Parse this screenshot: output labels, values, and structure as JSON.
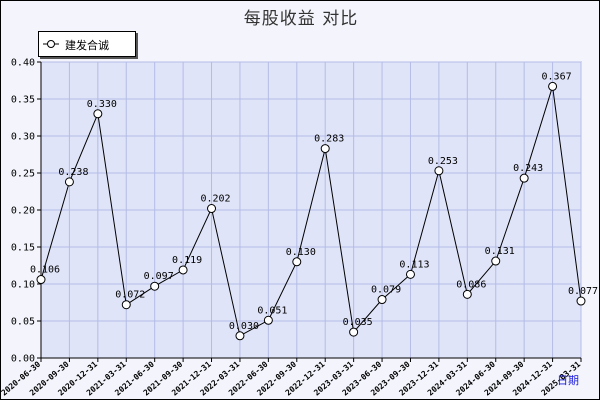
{
  "chart_data": {
    "type": "line",
    "title": "每股收益 对比",
    "xlabel": "",
    "ylabel": "",
    "x_axis_corner_label": "日期",
    "ylim": [
      0,
      0.4
    ],
    "yticks": [
      "0.00",
      "0.05",
      "0.10",
      "0.15",
      "0.20",
      "0.25",
      "0.30",
      "0.35",
      "0.40"
    ],
    "grid": true,
    "legend_position": "top-left",
    "categories": [
      "2020-06-30",
      "2020-09-30",
      "2020-12-31",
      "2021-03-31",
      "2021-06-30",
      "2021-09-30",
      "2021-12-31",
      "2022-03-31",
      "2022-06-30",
      "2022-09-30",
      "2022-12-31",
      "2023-03-31",
      "2023-06-30",
      "2023-09-30",
      "2023-12-31",
      "2024-03-31",
      "2024-06-30",
      "2024-09-30",
      "2024-12-31",
      "2025-03-31"
    ],
    "series": [
      {
        "name": "建发合诚",
        "values": [
          0.106,
          0.238,
          0.33,
          0.072,
          0.097,
          0.119,
          0.202,
          0.03,
          0.051,
          0.13,
          0.283,
          0.035,
          0.079,
          0.113,
          0.253,
          0.086,
          0.131,
          0.243,
          0.367,
          0.077
        ],
        "labels": [
          "0.106",
          "0.238",
          "0.330",
          "0.072",
          "0.097",
          "0.119",
          "0.202",
          "0.030",
          "0.051",
          "0.130",
          "0.283",
          "0.035",
          "0.079",
          "0.113",
          "0.253",
          "0.086",
          "0.131",
          "0.243",
          "0.367",
          "0.077"
        ]
      }
    ],
    "colors": {
      "plot_background": "#dfe4f8",
      "frame_background": "#f4f5fc",
      "grid": "#b4bce6",
      "line": "#000000",
      "marker_fill": "#ffffff",
      "corner_label": "#1a1adc"
    }
  }
}
